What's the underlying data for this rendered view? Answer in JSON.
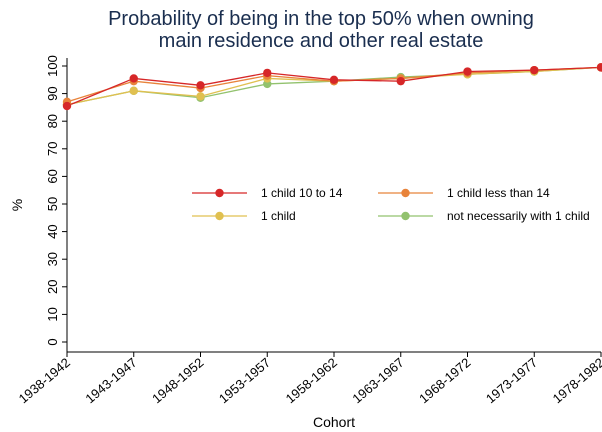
{
  "chart_data": {
    "type": "line",
    "title": [
      "Probability of being in the top 50% when owning",
      "main residence and other real estate"
    ],
    "xlabel": "Cohort",
    "ylabel": "%",
    "ylim": [
      0,
      100
    ],
    "yticks": [
      0,
      10,
      20,
      30,
      40,
      50,
      60,
      70,
      80,
      90,
      100
    ],
    "categories": [
      "1938-1942",
      "1943-1947",
      "1948-1952",
      "1953-1957",
      "1958-1962",
      "1963-1967",
      "1968-1972",
      "1973-1977",
      "1978-1982"
    ],
    "grid": false,
    "legend_position": "center-right",
    "series": [
      {
        "name": "1 child 10 to 14",
        "color": "#d62728",
        "values": [
          85.5,
          95.5,
          93,
          97.5,
          95,
          94.5,
          98,
          98.5,
          99.5
        ]
      },
      {
        "name": "1 child less than 14",
        "color": "#e8833a",
        "values": [
          87,
          94.5,
          92,
          96.5,
          94.5,
          95.5,
          97.5,
          98.5,
          99.5
        ]
      },
      {
        "name": "1 child",
        "color": "#e0c050",
        "values": [
          86,
          91,
          89,
          95.5,
          94.5,
          95.5,
          97,
          98,
          99.5
        ]
      },
      {
        "name": "not necessarily with 1 child",
        "color": "#92c26e",
        "values": [
          86,
          91,
          88.5,
          93.5,
          94.5,
          96,
          97,
          98,
          99.5
        ]
      }
    ]
  }
}
